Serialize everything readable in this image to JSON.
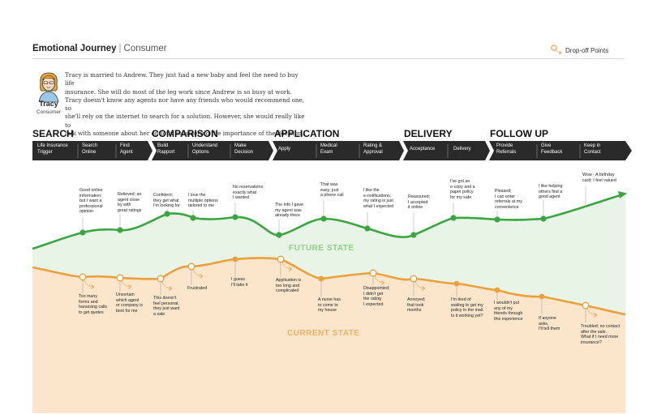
{
  "header": {
    "title": "Emotional Journey",
    "separator": "|",
    "subtitle": "Consumer",
    "legend_label": "Drop-off Points"
  },
  "persona": {
    "name": "Tracy",
    "role": "Consumer",
    "story_lines": [
      "Tracy is married to Andrew. They just had a new baby and feel the need to buy life",
      "insurance. She will do most of the leg work since Andrew is so busy at work.",
      "Tracy doesn't know any agents nor have any friends who would recommend one, so",
      "she'll rely on the internet to search for a solution. However, she would really like to",
      "talk with someone about her options considering the importance of the decision."
    ]
  },
  "phases": [
    "SEARCH",
    "COMPARISON",
    "APPLICATION",
    "DELIVERY",
    "FOLLOW UP"
  ],
  "steps": [
    [
      "Life Insurance",
      "Trigger"
    ],
    [
      "Search",
      "Online"
    ],
    [
      "Find",
      "Agent"
    ],
    [
      "Build",
      "Rapport"
    ],
    [
      "Understand",
      "Options"
    ],
    [
      "Make",
      "Decision"
    ],
    [
      "Apply"
    ],
    [
      "Medical",
      "Exam"
    ],
    [
      "Rating &",
      "Approval"
    ],
    [
      "Acceptance"
    ],
    [
      "Delivery"
    ],
    [
      "Provide",
      "Referrals"
    ],
    [
      "Give",
      "Feedback"
    ],
    [
      "Keep in",
      "Contact"
    ]
  ],
  "states": {
    "future": "FUTURE STATE",
    "current": "CURRENT STATE"
  },
  "future_notes": [
    [
      "Good online",
      "information;",
      "but I want a",
      "professional",
      "opinion"
    ],
    [
      "Relieved; an",
      "agent close",
      "by with",
      "great ratings"
    ],
    [
      "Confident;",
      "they get what",
      "I'm looking for"
    ],
    [
      "I love the",
      "multiple options",
      "tailored to me"
    ],
    [
      "No reservations;",
      "exactly what",
      "I wanted"
    ],
    [
      "The info I gave",
      "my agent was",
      "already there"
    ],
    [
      "That was",
      "easy; just",
      "a phone call"
    ],
    [
      "I like the",
      "e-notifications;",
      "my rating is just",
      "what I expected"
    ],
    [
      "Reassured;",
      "I accepted",
      "it online"
    ],
    [
      "I've got an",
      "e-copy and a",
      "paper policy",
      "for my safe"
    ],
    [
      "Pleased;",
      "I can enter",
      "referrals at my",
      "convenience"
    ],
    [
      "I like helping",
      "others find a",
      "good agent"
    ],
    [
      "Wow - A birthday",
      "card; I feel valued"
    ]
  ],
  "current_notes": [
    [
      "Too many",
      "forms and",
      "harassing calls",
      "to get quotes"
    ],
    [
      "Uncertain",
      "which agent",
      "or company is",
      "best for me"
    ],
    [
      "This doesn't",
      "feel personal;",
      "they just want",
      "a sale"
    ],
    [
      "Frustrated"
    ],
    [
      "I guess",
      "I'll take it"
    ],
    [
      "Application is",
      "too long and",
      "complicated"
    ],
    [
      "A nurse has",
      "to come to",
      "my house"
    ],
    [
      "Disappointed;",
      "I didn't get",
      "the rating",
      "I expected"
    ],
    [
      "Annoyed;",
      "that took",
      "months"
    ],
    [
      "I'm tired of",
      "waiting to get my",
      "policy in the mail.",
      "Is it working yet?"
    ],
    [
      "I wouldn't put",
      "any of my",
      "friends through",
      "this experience"
    ],
    [
      "If anyone",
      "asks,",
      "I'll tell them"
    ],
    [
      "Troubled; no contact",
      "after the sale.",
      "What if I need more",
      "insurance?"
    ]
  ],
  "colors": {
    "future": "#3aa640",
    "future_fill": "#e7f4e6",
    "current": "#eba03a",
    "current_fill": "#fbe6cc",
    "bar": "#2a2a2a",
    "future_label": "#8fcf87",
    "current_label": "#f0b262"
  }
}
